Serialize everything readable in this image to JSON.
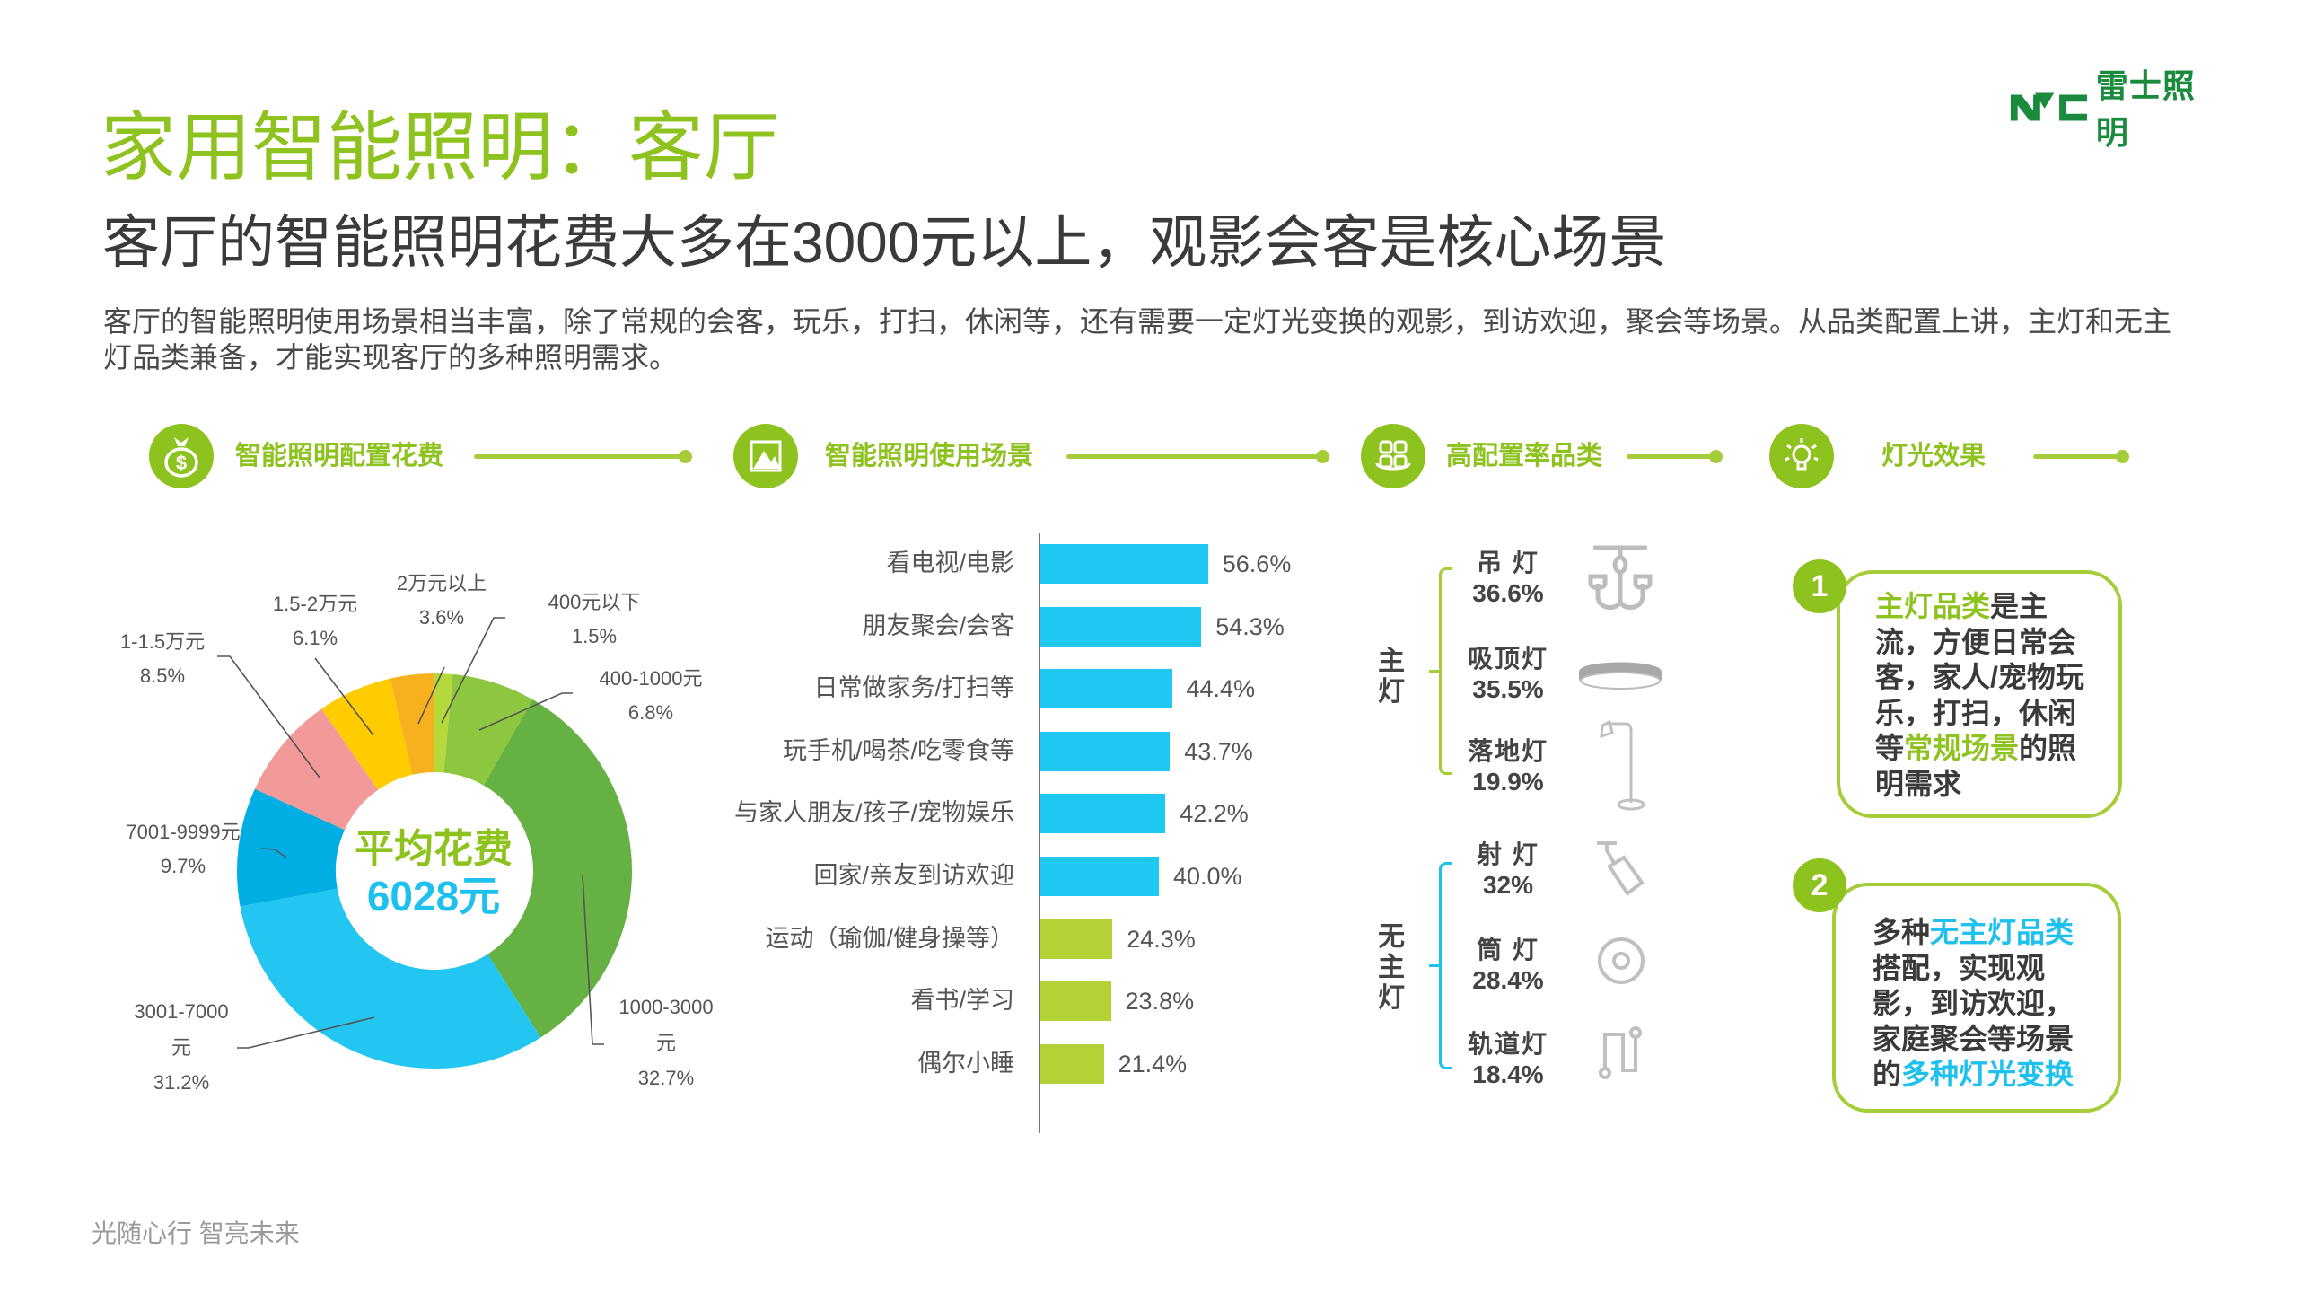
{
  "header": {
    "title": "家用智能照明：客厅",
    "subtitle": "客厅的智能照明花费大多在3000元以上，观影会客是核心场景",
    "intro": "客厅的智能照明使用场景相当丰富，除了常规的会客，玩乐，打扫，休闲等，还有需要一定灯光变换的观影，到访欢迎，聚会等场景。从品类配置上讲，主灯和无主灯品类兼备，才能实现客厅的多种照明需求。",
    "logo_text": "雷士照明"
  },
  "sections": [
    {
      "label": "智能照明配置花费",
      "icon": "money-bag-icon"
    },
    {
      "label": "智能照明使用场景",
      "icon": "scene-icon"
    },
    {
      "label": "高配置率品类",
      "icon": "grid-icon"
    },
    {
      "label": "灯光效果",
      "icon": "light-bulb-icon"
    }
  ],
  "colors": {
    "accent_green": "#8dc21f",
    "accent_blue": "#1ec0ee",
    "bar_blue": "#1fc8f0",
    "bar_green": "#b2d235"
  },
  "chart_data": [
    {
      "type": "pie",
      "title": "智能照明配置花费",
      "center_label": "平均花费",
      "center_value": "6028元",
      "slices": [
        {
          "label": "400元以下",
          "value": 1.5,
          "text": "1.5%",
          "color": "#b5d93a"
        },
        {
          "label": "400-1000元",
          "value": 6.8,
          "text": "6.8%",
          "color": "#8dc63f"
        },
        {
          "label": "1000-3000元",
          "value": 32.7,
          "text": "32.7%",
          "color": "#66b144"
        },
        {
          "label": "3001-7000元",
          "value": 31.2,
          "text": "31.2%",
          "color": "#22c6f0"
        },
        {
          "label": "7001-9999元",
          "value": 9.7,
          "text": "9.7%",
          "color": "#00aee4"
        },
        {
          "label": "1-1.5万元",
          "value": 8.5,
          "text": "8.5%",
          "color": "#f29a9a"
        },
        {
          "label": "1.5-2万元",
          "value": 6.1,
          "text": "6.1%",
          "color": "#ffcc00"
        },
        {
          "label": "2万元以上",
          "value": 3.6,
          "text": "3.6%",
          "color": "#f7b01e"
        }
      ]
    },
    {
      "type": "bar",
      "orientation": "horizontal",
      "title": "智能照明使用场景",
      "categories": [
        "看电视/电影",
        "朋友聚会/会客",
        "日常做家务/打扫等",
        "玩手机/喝茶/吃零食等",
        "与家人朋友/孩子/宠物娱乐",
        "回家/亲友到访欢迎",
        "运动（瑜伽/健身操等）",
        "看书/学习",
        "偶尔小睡"
      ],
      "values": [
        56.6,
        54.3,
        44.4,
        43.7,
        42.2,
        40.0,
        24.3,
        23.8,
        21.4
      ],
      "labels": [
        "56.6%",
        "54.3%",
        "44.4%",
        "43.7%",
        "42.2%",
        "40.0%",
        "24.3%",
        "23.8%",
        "21.4%"
      ],
      "bar_colors": [
        "#1fc8f0",
        "#1fc8f0",
        "#1fc8f0",
        "#1fc8f0",
        "#1fc8f0",
        "#1fc8f0",
        "#b2d235",
        "#b2d235",
        "#b2d235"
      ],
      "xlim": [
        0,
        60
      ]
    }
  ],
  "categories": {
    "main": {
      "group_label": "主灯",
      "items": [
        {
          "name": "吊  灯",
          "pct": "36.6%",
          "icon": "chandelier-icon"
        },
        {
          "name": "吸顶灯",
          "pct": "35.5%",
          "icon": "ceiling-light-icon"
        },
        {
          "name": "落地灯",
          "pct": "19.9%",
          "icon": "floor-lamp-icon"
        }
      ]
    },
    "no_main": {
      "group_label": "无主灯",
      "items": [
        {
          "name": "射  灯",
          "pct": "32%",
          "icon": "spotlight-icon"
        },
        {
          "name": "筒  灯",
          "pct": "28.4%",
          "icon": "downlight-icon"
        },
        {
          "name": "轨道灯",
          "pct": "18.4%",
          "icon": "track-light-icon"
        }
      ]
    }
  },
  "effects": [
    {
      "number": "1",
      "parts": [
        {
          "t": "主灯品类",
          "c": "g"
        },
        {
          "t": "是主流，方便日常会客，家人/宠物玩乐，打扫，休闲等",
          "c": ""
        },
        {
          "t": "常规场景",
          "c": "g"
        },
        {
          "t": "的照明需求",
          "c": ""
        }
      ]
    },
    {
      "number": "2",
      "parts": [
        {
          "t": "多种",
          "c": ""
        },
        {
          "t": "无主灯品类",
          "c": "b"
        },
        {
          "t": "搭配，实现观影，到访欢迎，家庭聚会等场景的",
          "c": ""
        },
        {
          "t": "多种灯光变换",
          "c": "b"
        }
      ]
    }
  ],
  "footer": "光随心行   智亮未来"
}
